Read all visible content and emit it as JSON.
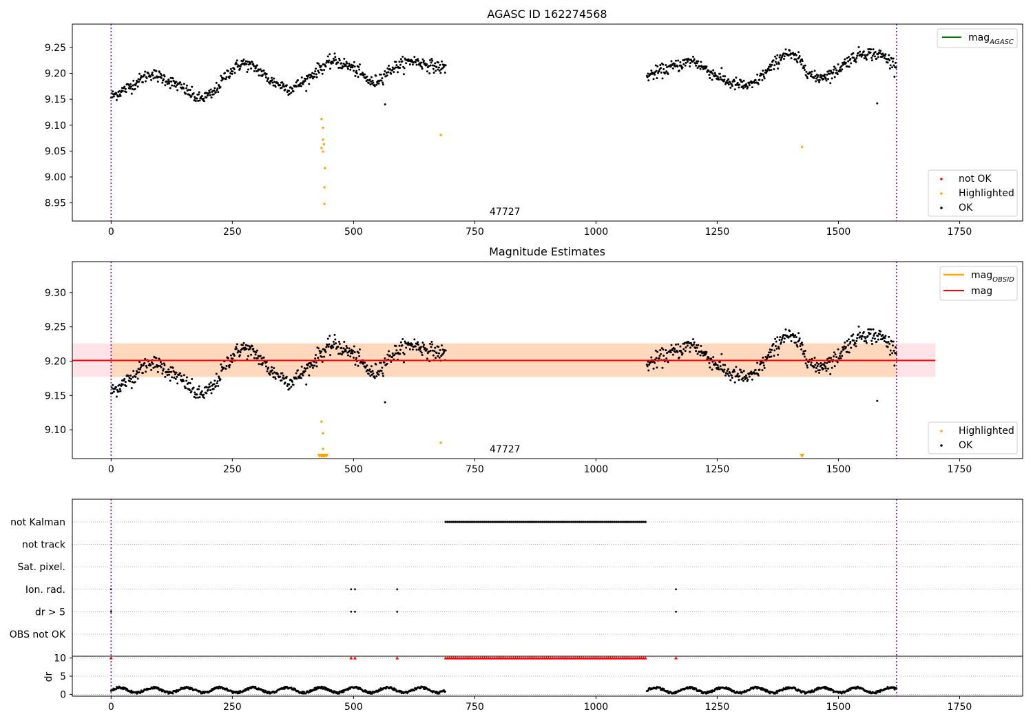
{
  "chart_data": [
    {
      "type": "scatter",
      "title": "AGASC ID 162274568",
      "xlim": [
        -80,
        1880
      ],
      "ylim": [
        8.915,
        9.295
      ],
      "xticks": [
        0,
        250,
        500,
        750,
        1000,
        1250,
        1500,
        1750
      ],
      "xtick_labels": [
        "0",
        "250",
        "500",
        "750",
        "1000",
        "1250",
        "1500",
        "1750"
      ],
      "yticks": [
        8.95,
        9.0,
        9.05,
        9.1,
        9.15,
        9.2,
        9.25
      ],
      "ytick_labels": [
        "8.95",
        "9.00",
        "9.05",
        "9.10",
        "9.15",
        "9.20",
        "9.25"
      ],
      "annotation": "47727",
      "vlines": [
        0,
        1620
      ],
      "line_legend": [
        {
          "label": "mag",
          "sub": "AGASC",
          "color": "#008000"
        }
      ],
      "marker_legend": [
        {
          "label": "not OK",
          "color": "#ff0000"
        },
        {
          "label": "Highlighted",
          "color": "#ffa500"
        },
        {
          "label": "OK",
          "color": "#000000"
        }
      ],
      "ok_points": {
        "segments": [
          [
            0,
            690
          ],
          [
            1105,
            1620
          ]
        ],
        "anchors": [
          [
            0,
            9.155
          ],
          [
            40,
            9.175
          ],
          [
            80,
            9.2
          ],
          [
            110,
            9.19
          ],
          [
            150,
            9.17
          ],
          [
            180,
            9.15
          ],
          [
            210,
            9.16
          ],
          [
            240,
            9.2
          ],
          [
            270,
            9.22
          ],
          [
            300,
            9.21
          ],
          [
            330,
            9.185
          ],
          [
            370,
            9.17
          ],
          [
            400,
            9.185
          ],
          [
            430,
            9.21
          ],
          [
            460,
            9.225
          ],
          [
            500,
            9.21
          ],
          [
            540,
            9.18
          ],
          [
            580,
            9.21
          ],
          [
            620,
            9.225
          ],
          [
            660,
            9.215
          ],
          [
            690,
            9.21
          ],
          [
            1105,
            9.195
          ],
          [
            1150,
            9.21
          ],
          [
            1200,
            9.225
          ],
          [
            1240,
            9.2
          ],
          [
            1280,
            9.18
          ],
          [
            1320,
            9.175
          ],
          [
            1360,
            9.21
          ],
          [
            1390,
            9.24
          ],
          [
            1420,
            9.225
          ],
          [
            1450,
            9.19
          ],
          [
            1490,
            9.2
          ],
          [
            1520,
            9.225
          ],
          [
            1550,
            9.24
          ],
          [
            1590,
            9.235
          ],
          [
            1620,
            9.215
          ]
        ],
        "noise": 0.011,
        "outliers": [
          [
            565,
            9.14
          ],
          [
            1580,
            9.142
          ]
        ]
      },
      "highlighted_points": [
        [
          434,
          9.112
        ],
        [
          437,
          9.095
        ],
        [
          437,
          9.072
        ],
        [
          439,
          9.063
        ],
        [
          434,
          9.056
        ],
        [
          437,
          9.049
        ],
        [
          441,
          9.017
        ],
        [
          440,
          8.98
        ],
        [
          440,
          8.948
        ],
        [
          680,
          9.081
        ],
        [
          1425,
          9.058
        ]
      ]
    },
    {
      "type": "scatter",
      "title": "Magnitude Estimates",
      "xlim": [
        -80,
        1880
      ],
      "ylim": [
        9.058,
        9.345
      ],
      "xticks": [
        0,
        250,
        500,
        750,
        1000,
        1250,
        1500,
        1750
      ],
      "xtick_labels": [
        "0",
        "250",
        "500",
        "750",
        "1000",
        "1250",
        "1500",
        "1750"
      ],
      "yticks": [
        9.1,
        9.15,
        9.2,
        9.25,
        9.3
      ],
      "ytick_labels": [
        "9.10",
        "9.15",
        "9.20",
        "9.25",
        "9.30"
      ],
      "annotation": "47727",
      "vlines": [
        0,
        1620
      ],
      "mag_line": {
        "value": 9.201,
        "x_range": [
          -80,
          1700
        ],
        "color": "#ff0000"
      },
      "mag_band": {
        "low": 9.177,
        "high": 9.226,
        "x_range": [
          -80,
          1700
        ],
        "color": "#ffc0cb"
      },
      "obsid_band": {
        "low": 9.177,
        "high": 9.226,
        "x_range": [
          0,
          1620
        ],
        "color": "#ffa500"
      },
      "line_legend": [
        {
          "label": "mag",
          "sub": "OBSID",
          "color": "#ffa500"
        },
        {
          "label": "mag",
          "sub": "",
          "color": "#ff0000"
        }
      ],
      "marker_legend": [
        {
          "label": "Highlighted",
          "color": "#ffa500"
        },
        {
          "label": "OK",
          "color": "#000000"
        }
      ],
      "highlighted_points": [
        [
          434,
          9.112
        ],
        [
          437,
          9.095
        ],
        [
          437,
          9.072
        ],
        [
          680,
          9.081
        ]
      ],
      "offscale_markers": [
        430,
        434,
        437,
        440,
        444,
        1425
      ]
    },
    {
      "type": "scatter",
      "title": "",
      "flag_rows": [
        "not Kalman",
        "not track",
        "Sat. pixel.",
        "Ion. rad.",
        "dr > 5",
        "OBS not OK"
      ],
      "flags": {
        "not Kalman": {
          "range": [
            690,
            1105
          ],
          "step": 4
        },
        "Ion. rad.": {
          "points": [
            0,
            495,
            503,
            590,
            1165
          ]
        },
        "dr > 5": {
          "points": [
            0,
            495,
            503,
            590,
            1165
          ]
        }
      },
      "dr_panel": {
        "ylabel": "dr",
        "yticks": [
          0,
          5,
          10
        ],
        "ytick_labels": [
          "0",
          "5",
          "10"
        ],
        "ylim": [
          -0.5,
          10.5
        ],
        "xlim": [
          -80,
          1880
        ],
        "xticks": [
          0,
          250,
          500,
          750,
          1000,
          1250,
          1500,
          1750
        ],
        "xtick_labels": [
          "0",
          "250",
          "500",
          "750",
          "1000",
          "1250",
          "1500",
          "1750"
        ],
        "segments": [
          [
            0,
            690
          ],
          [
            1105,
            1620
          ]
        ],
        "clip_points": [
          0,
          495,
          503,
          590,
          1165
        ],
        "clip_range": [
          690,
          1105
        ],
        "clip_value": 10,
        "clip_color": "#ff0000"
      },
      "vlines": [
        0,
        1620
      ]
    }
  ]
}
